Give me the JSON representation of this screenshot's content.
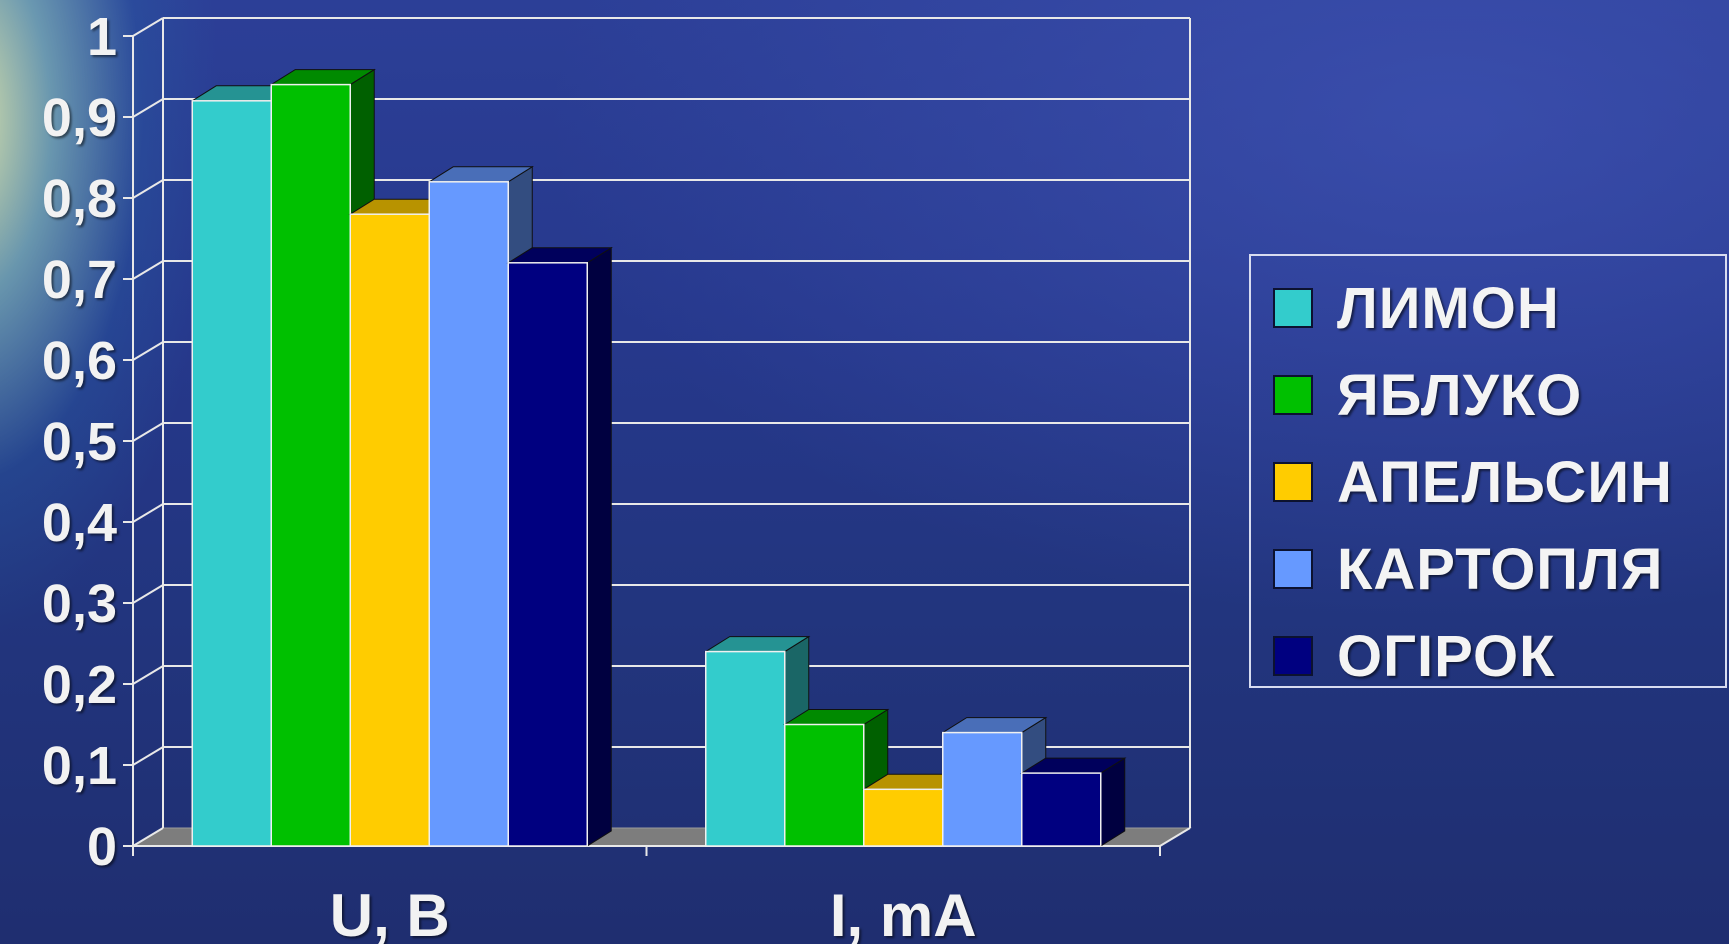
{
  "chart_data": {
    "type": "bar",
    "categories": [
      "U, B",
      "I, mA"
    ],
    "series": [
      {
        "name": "ЛИМОН",
        "color": "#33cccc",
        "values": [
          0.92,
          0.24
        ]
      },
      {
        "name": "ЯБЛУКО",
        "color": "#00c000",
        "values": [
          0.94,
          0.15
        ]
      },
      {
        "name": "АПЕЛЬСИН",
        "color": "#ffcc00",
        "values": [
          0.78,
          0.07
        ]
      },
      {
        "name": "КАРТОПЛЯ",
        "color": "#6699ff",
        "values": [
          0.82,
          0.14
        ]
      },
      {
        "name": "ОГІРОК",
        "color": "#000080",
        "values": [
          0.72,
          0.09
        ]
      }
    ],
    "yticks": [
      "0",
      "0,1",
      "0,2",
      "0,3",
      "0,4",
      "0,5",
      "0,6",
      "0,7",
      "0,8",
      "0,9",
      "1"
    ],
    "ylim": [
      0,
      1
    ],
    "grid": true,
    "bar_style": "3d",
    "legend_position": "right"
  }
}
